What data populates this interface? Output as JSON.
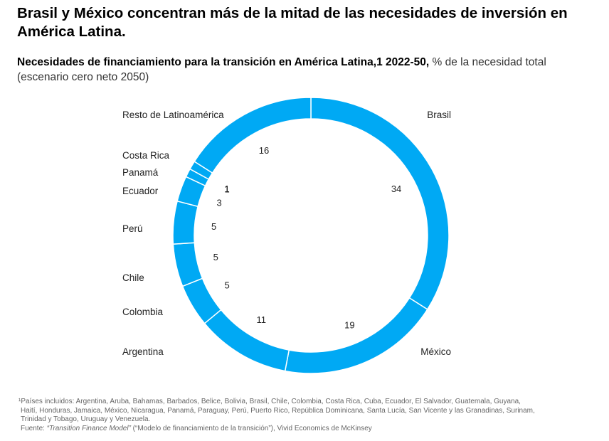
{
  "header": {
    "title": "Brasil y México concentran más de la mitad de las necesidades de inversión en América Latina.",
    "subtitle_bold": "Necesidades de financiamiento para la transición en América Latina,1 2022-50,",
    "subtitle_rest": " % de la necesidad total (escenario cero neto 2050)"
  },
  "chart_data": {
    "type": "pie",
    "style": "donut",
    "color": "#00A9F4",
    "title": "Necesidades de financiamiento para la transición en América Latina, 2022-50",
    "unit": "% de la necesidad total",
    "slices": [
      {
        "label": "Brasil",
        "value": 34
      },
      {
        "label": "México",
        "value": 19
      },
      {
        "label": "Argentina",
        "value": 11
      },
      {
        "label": "Colombia",
        "value": 5
      },
      {
        "label": "Chile",
        "value": 5
      },
      {
        "label": "Perú",
        "value": 5
      },
      {
        "label": "Ecuador",
        "value": 3
      },
      {
        "label": "Panamá",
        "value": 1
      },
      {
        "label": "Costa Rica",
        "value": 1
      },
      {
        "label": "Resto de Latinoamérica",
        "value": 16
      }
    ]
  },
  "footnote": {
    "line1": "¹Países incluidos: Argentina, Aruba, Bahamas, Barbados, Belice, Bolivia, Brasil, Chile, Colombia, Costa Rica, Cuba, Ecuador, El Salvador, Guatemala, Guyana,",
    "line2": "Haití, Honduras, Jamaica, México, Nicaragua, Panamá, Paraguay, Perú, Puerto Rico, República Dominicana, Santa Lucía, San Vicente y las Granadinas, Surinam,",
    "line3": "Trinidad y Tobago, Uruguay y Venezuela.",
    "source_prefix": "Fuente: ",
    "source_model": "“Transition Finance Model”",
    "source_rest": " (“Modelo de financiamiento de la transición”), Vivid Economics de McKinsey"
  }
}
